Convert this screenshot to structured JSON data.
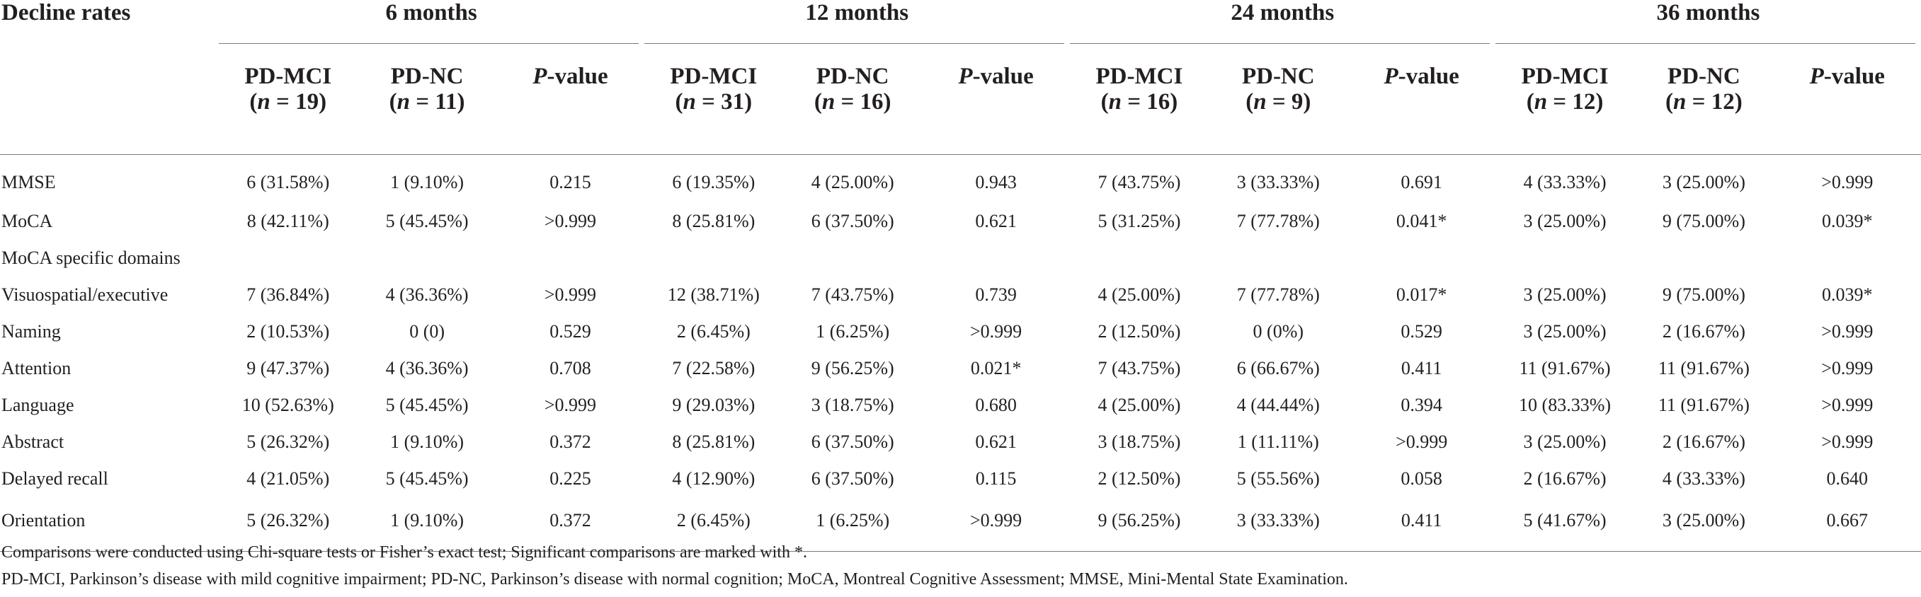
{
  "table": {
    "corner_label": "Decline rates",
    "periods": [
      "6 months",
      "12 months",
      "24 months",
      "36 months"
    ],
    "subheaders": [
      {
        "group": "PD-MCI",
        "n": "19"
      },
      {
        "group": "PD-NC",
        "n": "11"
      },
      {
        "group": "P-value"
      },
      {
        "group": "PD-MCI",
        "n": "31"
      },
      {
        "group": "PD-NC",
        "n": "16"
      },
      {
        "group": "P-value"
      },
      {
        "group": "PD-MCI",
        "n": "16"
      },
      {
        "group": "PD-NC",
        "n": "9"
      },
      {
        "group": "P-value"
      },
      {
        "group": "PD-MCI",
        "n": "12"
      },
      {
        "group": "PD-NC",
        "n": "12"
      },
      {
        "group": "P-value"
      }
    ],
    "rows": [
      {
        "label": "MMSE",
        "cells": [
          "6 (31.58%)",
          "1 (9.10%)",
          "0.215",
          "6 (19.35%)",
          "4 (25.00%)",
          "0.943",
          "7 (43.75%)",
          "3 (33.33%)",
          "0.691",
          "4 (33.33%)",
          "3 (25.00%)",
          ">0.999"
        ]
      },
      {
        "label": "MoCA",
        "cells": [
          "8 (42.11%)",
          "5 (45.45%)",
          ">0.999",
          "8 (25.81%)",
          "6 (37.50%)",
          "0.621",
          "5 (31.25%)",
          "7 (77.78%)",
          "0.041*",
          "3 (25.00%)",
          "9 (75.00%)",
          "0.039*"
        ]
      },
      {
        "label": "MoCA specific domains",
        "cells": [
          "",
          "",
          "",
          "",
          "",
          "",
          "",
          "",
          "",
          "",
          "",
          ""
        ]
      },
      {
        "label": "Visuospatial/executive",
        "cells": [
          "7 (36.84%)",
          "4 (36.36%)",
          ">0.999",
          "12 (38.71%)",
          "7 (43.75%)",
          "0.739",
          "4 (25.00%)",
          "7 (77.78%)",
          "0.017*",
          "3 (25.00%)",
          "9 (75.00%)",
          "0.039*"
        ]
      },
      {
        "label": "Naming",
        "cells": [
          "2 (10.53%)",
          "0 (0)",
          "0.529",
          "2 (6.45%)",
          "1 (6.25%)",
          ">0.999",
          "2 (12.50%)",
          "0 (0%)",
          "0.529",
          "3 (25.00%)",
          "2 (16.67%)",
          ">0.999"
        ]
      },
      {
        "label": "Attention",
        "cells": [
          "9 (47.37%)",
          "4 (36.36%)",
          "0.708",
          "7 (22.58%)",
          "9 (56.25%)",
          "0.021*",
          "7 (43.75%)",
          "6 (66.67%)",
          "0.411",
          "11 (91.67%)",
          "11 (91.67%)",
          ">0.999"
        ]
      },
      {
        "label": "Language",
        "cells": [
          "10 (52.63%)",
          "5 (45.45%)",
          ">0.999",
          "9 (29.03%)",
          "3 (18.75%)",
          "0.680",
          "4 (25.00%)",
          "4 (44.44%)",
          "0.394",
          "10 (83.33%)",
          "11 (91.67%)",
          ">0.999"
        ]
      },
      {
        "label": "Abstract",
        "cells": [
          "5 (26.32%)",
          "1 (9.10%)",
          "0.372",
          "8 (25.81%)",
          "6 (37.50%)",
          "0.621",
          "3 (18.75%)",
          "1 (11.11%)",
          ">0.999",
          "3 (25.00%)",
          "2 (16.67%)",
          ">0.999"
        ]
      },
      {
        "label": "Delayed recall",
        "cells": [
          "4 (21.05%)",
          "5 (45.45%)",
          "0.225",
          "4 (12.90%)",
          "6 (37.50%)",
          "0.115",
          "2 (12.50%)",
          "5 (55.56%)",
          "0.058",
          "2 (16.67%)",
          "4 (33.33%)",
          "0.640"
        ]
      },
      {
        "label": "Orientation",
        "cells": [
          "5 (26.32%)",
          "1 (9.10%)",
          "0.372",
          "2 (6.45%)",
          "1 (6.25%)",
          ">0.999",
          "9 (56.25%)",
          "3 (33.33%)",
          "0.411",
          "5 (41.67%)",
          "3 (25.00%)",
          "0.667"
        ]
      }
    ]
  },
  "footnotes": [
    "Comparisons were conducted using Chi-square tests or Fisher’s exact test; Significant comparisons are marked with *.",
    "PD-MCI, Parkinson’s disease with mild cognitive impairment; PD-NC, Parkinson’s disease with normal cognition; MoCA, Montreal Cognitive Assessment; MMSE, Mini-Mental State Examination."
  ]
}
